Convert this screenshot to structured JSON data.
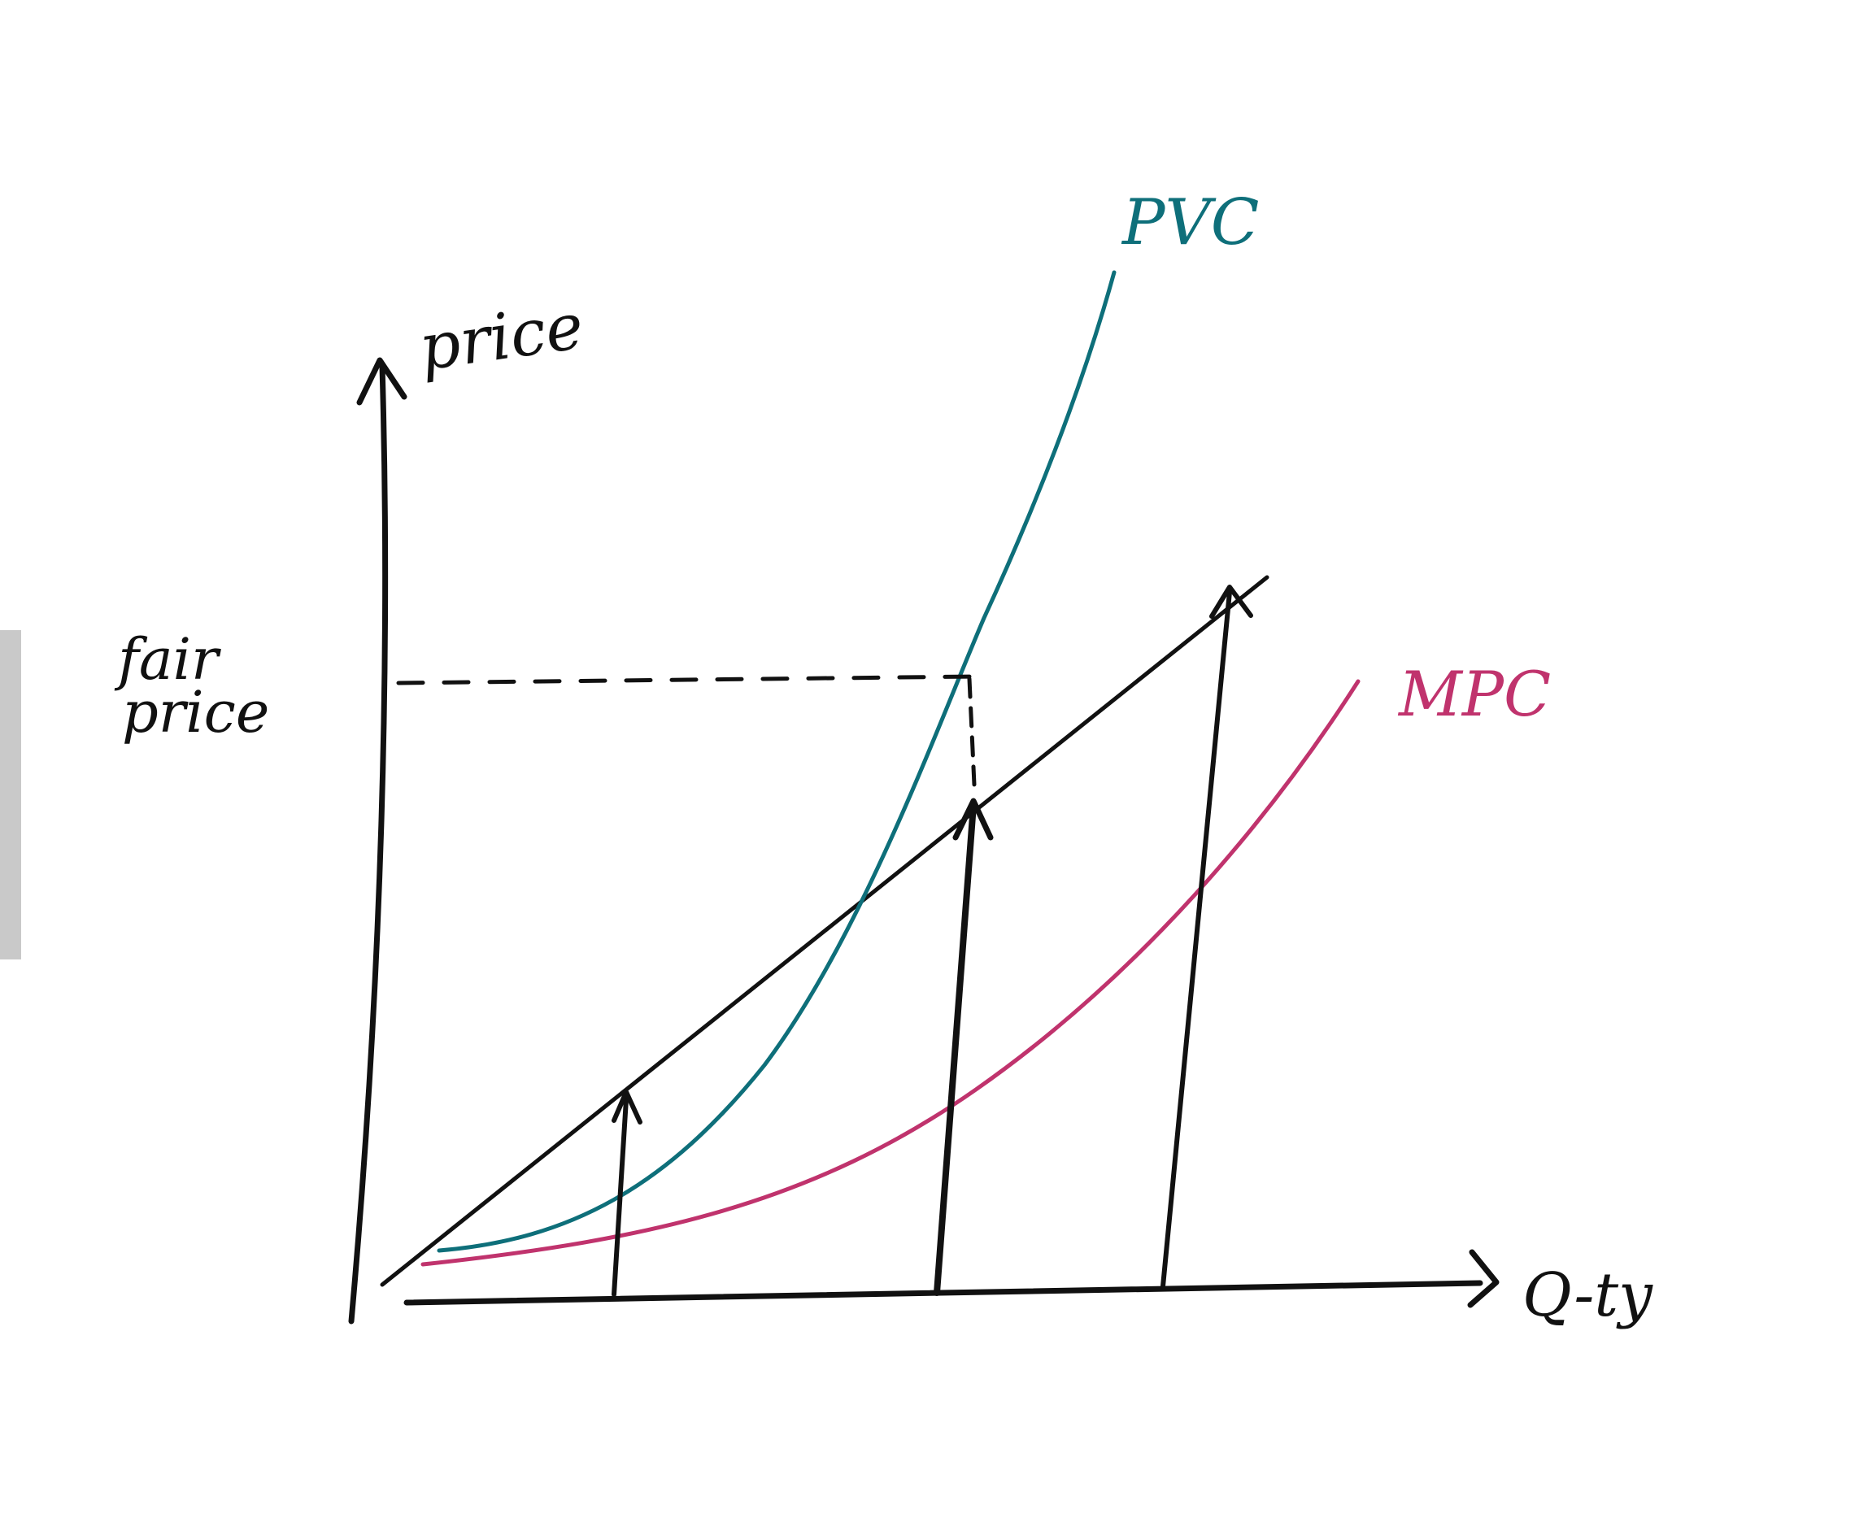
{
  "labels": {
    "y_axis": "price",
    "x_axis": "Q-ty",
    "fair_price_line1": "fair",
    "fair_price_line2": "price",
    "curve_teal": "PVC",
    "curve_magenta": "MPC"
  },
  "colors": {
    "ink": "#111111",
    "teal": "#0e6f7a",
    "magenta": "#c0336d",
    "edge_shadow": "#c9c9c9"
  }
}
